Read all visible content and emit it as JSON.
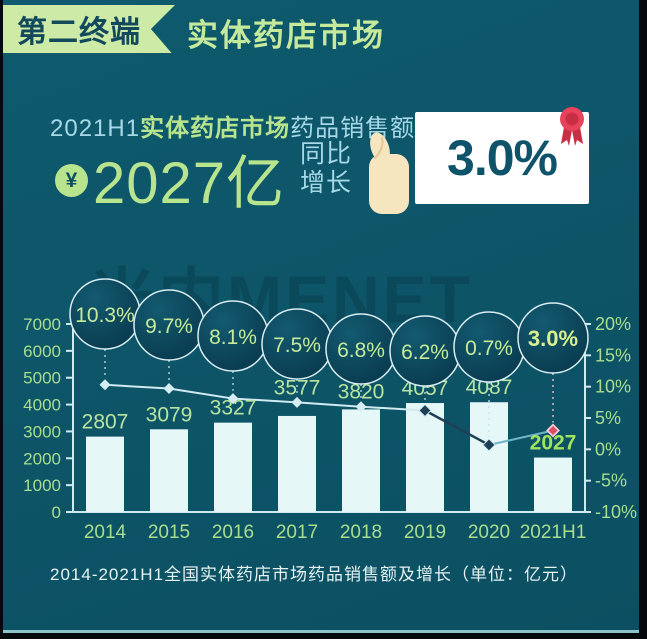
{
  "header": {
    "badge": "第二终端",
    "title": "实体药店市场"
  },
  "hero": {
    "prefix": "2021H1",
    "highlight": "实体药店市场",
    "suffix": "药品销售额达",
    "currency_symbol": "¥",
    "big_value": "2027亿",
    "growth_label_line1": "同比",
    "growth_label_line2": "增长",
    "growth_value": "3.0%"
  },
  "watermark": "米内MENET",
  "caption": "2014-2021H1全国实体药店市场药品销售额及增长（单位：亿元）",
  "colors": {
    "background": "#0d5467",
    "accent_green": "#b9e48e",
    "light_blue": "#a6d8e8",
    "axis": "#cfeaf0",
    "axis_text": "#a9dd8f",
    "bar_fill": "#e6f7f7",
    "bar_label": "#b9e3a1",
    "last_bar_label": "#9fe35f",
    "bubble_text": "#c5ea9a",
    "bubble_text_last": "#d9f18c",
    "line_pale": "#cfeaf0",
    "dark_navy": "#1d4055",
    "line_recover": "#6fb3cb",
    "highlight_pink": "#d94f68",
    "highlight_pink_halo": "#f2ccd6",
    "card_red": "#e8435a",
    "card_red_dark": "#c92f44",
    "hand_cream": "#f6e6bf"
  },
  "chart_data": {
    "type": "combo-bar-line",
    "title": "2014-2021H1全国实体药店市场药品销售额及增长（单位：亿元）",
    "categories": [
      "2014",
      "2015",
      "2016",
      "2017",
      "2018",
      "2019",
      "2020",
      "2021H1"
    ],
    "series": [
      {
        "name": "药品销售额（亿元）",
        "type": "bar",
        "values": [
          2807,
          3079,
          3327,
          3577,
          3820,
          4057,
          4087,
          2027
        ]
      },
      {
        "name": "同比增长",
        "type": "line",
        "values": [
          10.3,
          9.7,
          8.1,
          7.5,
          6.8,
          6.2,
          0.7,
          3.0
        ]
      }
    ],
    "left_axis": {
      "min": 0,
      "max": 7000,
      "tick_step": 1000
    },
    "right_axis": {
      "min": -10,
      "max": 20,
      "tick_step": 5,
      "unit": "%"
    },
    "grid": false,
    "legend": false
  }
}
